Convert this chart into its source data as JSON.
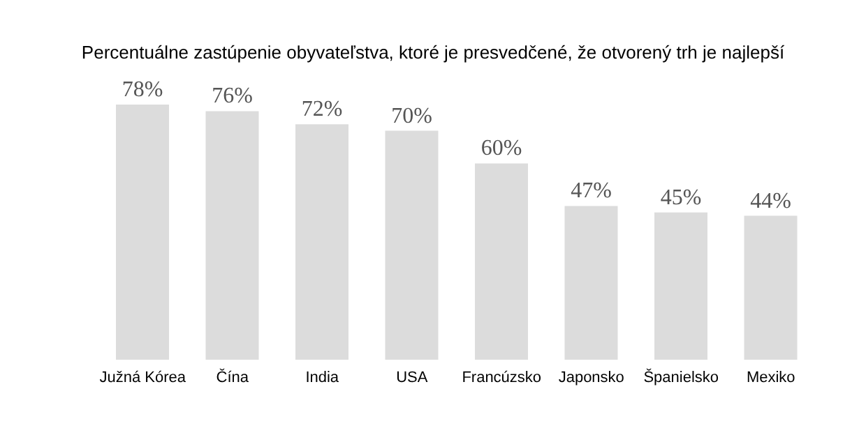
{
  "chart_data": {
    "type": "bar",
    "title": "Percentuálne zastúpenie obyvateľstva, ktoré je presvedčené, že otvorený trh je najlepší",
    "categories": [
      "Južná Kórea",
      "Čína",
      "India",
      "USA",
      "Francúzsko",
      "Japonsko",
      "Španielsko",
      "Mexiko"
    ],
    "values": [
      78,
      76,
      72,
      70,
      60,
      47,
      45,
      44
    ],
    "value_labels": [
      "78%",
      "76%",
      "72%",
      "70%",
      "60%",
      "47%",
      "45%",
      "44%"
    ],
    "color": "#dcdcdc"
  }
}
